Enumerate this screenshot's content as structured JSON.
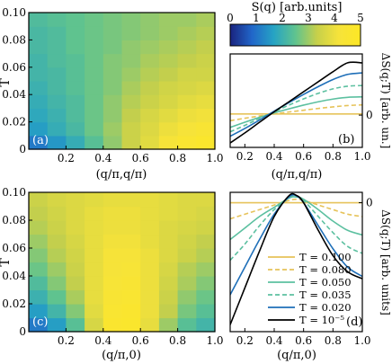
{
  "colorbar": {
    "label": "S(q) [arb.units]",
    "ticks": [
      0,
      1,
      2,
      3,
      4,
      5
    ],
    "range": [
      0,
      5
    ],
    "colormap": [
      "#1a237e",
      "#2166c9",
      "#26a3c4",
      "#5fc38f",
      "#c7d04a",
      "#f6e33a",
      "#fde725"
    ]
  },
  "chart_data": [
    {
      "type": "heatmap",
      "panel_label": "(a)",
      "xlabel": "(q/π,q/π)",
      "ylabel": "T",
      "xlim": [
        0,
        1.0
      ],
      "ylim": [
        0,
        0.1
      ],
      "xticks": [
        "0.2",
        "0.4",
        "0.6",
        "0.8",
        "1.0"
      ],
      "yticks": [
        "0",
        "0.02",
        "0.04",
        "0.06",
        "0.08",
        "0.10"
      ],
      "x": [
        0.05,
        0.15,
        0.25,
        0.35,
        0.45,
        0.55,
        0.65,
        0.75,
        0.85,
        0.95
      ],
      "y": [
        0.005,
        0.015,
        0.025,
        0.035,
        0.045,
        0.055,
        0.065,
        0.075,
        0.085,
        0.095
      ],
      "z": [
        [
          1.1,
          1.5,
          1.9,
          2.4,
          2.9,
          3.4,
          3.8,
          4.2,
          4.5,
          4.7
        ],
        [
          1.6,
          1.9,
          2.2,
          2.6,
          3.0,
          3.4,
          3.7,
          4.0,
          4.2,
          4.4
        ],
        [
          1.8,
          2.0,
          2.3,
          2.6,
          2.9,
          3.3,
          3.6,
          3.8,
          4.0,
          4.1
        ],
        [
          1.9,
          2.1,
          2.3,
          2.6,
          2.9,
          3.2,
          3.4,
          3.6,
          3.8,
          3.9
        ],
        [
          2.0,
          2.2,
          2.4,
          2.6,
          2.8,
          3.1,
          3.3,
          3.5,
          3.6,
          3.7
        ],
        [
          2.1,
          2.2,
          2.4,
          2.6,
          2.8,
          3.0,
          3.2,
          3.3,
          3.5,
          3.5
        ],
        [
          2.1,
          2.3,
          2.4,
          2.6,
          2.8,
          2.9,
          3.1,
          3.2,
          3.3,
          3.4
        ],
        [
          2.2,
          2.3,
          2.5,
          2.6,
          2.7,
          2.9,
          3.0,
          3.1,
          3.2,
          3.3
        ],
        [
          2.2,
          2.3,
          2.5,
          2.6,
          2.7,
          2.8,
          2.9,
          3.0,
          3.1,
          3.2
        ],
        [
          2.3,
          2.4,
          2.5,
          2.6,
          2.7,
          2.8,
          2.9,
          3.0,
          3.0,
          3.1
        ]
      ]
    },
    {
      "type": "line",
      "panel_label": "(b)",
      "xlabel": "(q/π,q/π)",
      "ylabel": "ΔS(q;T) [arb. un.]",
      "xlim": [
        0.1,
        1.0
      ],
      "ylim": [
        -1.45,
        2.75
      ],
      "xticks": [
        "0.2",
        "0.4",
        "0.6",
        "0.8",
        "1.0"
      ],
      "yticks": [
        "0"
      ],
      "x": [
        0.1,
        0.2,
        0.3,
        0.4,
        0.5,
        0.6,
        0.7,
        0.8,
        0.9,
        1.0
      ],
      "series": [
        {
          "name": "T = 0.100",
          "color": "#e6c35a",
          "dash": "solid",
          "values": [
            0.05,
            0.05,
            0.05,
            0.05,
            0.05,
            0.05,
            0.05,
            0.05,
            0.05,
            0.05
          ]
        },
        {
          "name": "T = 0.080",
          "color": "#e6c35a",
          "dash": "dashed",
          "values": [
            -0.25,
            -0.14,
            -0.04,
            0.05,
            0.14,
            0.22,
            0.3,
            0.37,
            0.43,
            0.46
          ]
        },
        {
          "name": "T = 0.050",
          "color": "#5cc0a0",
          "dash": "solid",
          "values": [
            -0.55,
            -0.32,
            -0.1,
            0.1,
            0.28,
            0.45,
            0.6,
            0.72,
            0.8,
            0.82
          ]
        },
        {
          "name": "T = 0.035",
          "color": "#5cc0a0",
          "dash": "dashed",
          "values": [
            -0.75,
            -0.46,
            -0.15,
            0.15,
            0.45,
            0.73,
            0.98,
            1.18,
            1.3,
            1.33
          ]
        },
        {
          "name": "T = 0.020",
          "color": "#1f6fb8",
          "dash": "solid",
          "values": [
            -0.95,
            -0.6,
            -0.22,
            0.18,
            0.56,
            0.93,
            1.28,
            1.6,
            1.83,
            1.9
          ]
        },
        {
          "name": "T = 10⁻⁵",
          "color": "#000000",
          "dash": "solid",
          "values": [
            -1.25,
            -0.8,
            -0.32,
            0.15,
            0.6,
            1.05,
            1.5,
            1.95,
            2.35,
            2.35
          ]
        }
      ]
    },
    {
      "type": "heatmap",
      "panel_label": "(c)",
      "xlabel": "(q/π,0)",
      "ylabel": "T",
      "xlim": [
        0,
        1.0
      ],
      "ylim": [
        0,
        0.1
      ],
      "xticks": [
        "0.2",
        "0.4",
        "0.6",
        "0.8",
        "1.0"
      ],
      "yticks": [
        "0",
        "0.02",
        "0.04",
        "0.06",
        "0.08",
        "0.10"
      ],
      "x": [
        0.05,
        0.15,
        0.25,
        0.35,
        0.45,
        0.55,
        0.65,
        0.75,
        0.85,
        0.95
      ],
      "y": [
        0.005,
        0.015,
        0.025,
        0.035,
        0.045,
        0.055,
        0.065,
        0.075,
        0.085,
        0.095
      ],
      "z": [
        [
          1.1,
          1.6,
          2.4,
          3.6,
          4.6,
          4.7,
          3.9,
          3.0,
          2.4,
          2.1
        ],
        [
          1.6,
          2.1,
          2.8,
          3.8,
          4.5,
          4.6,
          4.0,
          3.3,
          2.7,
          2.4
        ],
        [
          2.0,
          2.5,
          3.1,
          3.9,
          4.4,
          4.5,
          4.0,
          3.4,
          2.9,
          2.6
        ],
        [
          2.3,
          2.8,
          3.3,
          3.9,
          4.3,
          4.4,
          4.0,
          3.5,
          3.1,
          2.8
        ],
        [
          2.6,
          3.0,
          3.4,
          3.9,
          4.2,
          4.3,
          4.0,
          3.6,
          3.2,
          3.0
        ],
        [
          2.8,
          3.2,
          3.5,
          3.9,
          4.2,
          4.2,
          4.0,
          3.7,
          3.4,
          3.2
        ],
        [
          3.0,
          3.3,
          3.6,
          3.9,
          4.1,
          4.1,
          3.9,
          3.7,
          3.5,
          3.3
        ],
        [
          3.2,
          3.4,
          3.7,
          3.9,
          4.0,
          4.0,
          3.9,
          3.7,
          3.6,
          3.5
        ],
        [
          3.3,
          3.5,
          3.7,
          3.9,
          4.0,
          4.0,
          3.9,
          3.8,
          3.7,
          3.6
        ],
        [
          3.4,
          3.6,
          3.7,
          3.8,
          3.9,
          3.9,
          3.9,
          3.8,
          3.7,
          3.7
        ]
      ]
    },
    {
      "type": "line",
      "panel_label": "(d)",
      "xlabel": "(q/π,0)",
      "ylabel": "ΔS(q;T) [arb. units]",
      "xlim": [
        0.1,
        1.0
      ],
      "ylim": [
        -5.6,
        0.45
      ],
      "xticks": [
        "0.2",
        "0.4",
        "0.6",
        "0.8",
        "1.0"
      ],
      "yticks": [
        "0"
      ],
      "x": [
        0.1,
        0.2,
        0.3,
        0.4,
        0.5,
        0.55,
        0.6,
        0.7,
        0.8,
        0.9,
        1.0
      ],
      "series": [
        {
          "name": "T = 0.100",
          "color": "#e6c35a",
          "dash": "solid",
          "values": [
            0.0,
            0.0,
            0.0,
            0.0,
            0.0,
            0.0,
            0.0,
            0.0,
            0.0,
            0.0,
            0.0
          ]
        },
        {
          "name": "T = 0.080",
          "color": "#e6c35a",
          "dash": "dashed",
          "values": [
            -0.7,
            -0.5,
            -0.3,
            -0.1,
            0.1,
            0.15,
            0.1,
            -0.1,
            -0.3,
            -0.5,
            -0.6
          ]
        },
        {
          "name": "T = 0.050",
          "color": "#5cc0a0",
          "dash": "solid",
          "values": [
            -1.6,
            -1.1,
            -0.6,
            -0.2,
            0.2,
            0.25,
            0.15,
            -0.3,
            -0.8,
            -1.2,
            -1.4
          ]
        },
        {
          "name": "T = 0.035",
          "color": "#5cc0a0",
          "dash": "dashed",
          "values": [
            -2.5,
            -1.8,
            -1.0,
            -0.3,
            0.2,
            0.27,
            0.1,
            -0.6,
            -1.3,
            -1.9,
            -2.2
          ]
        },
        {
          "name": "T = 0.020",
          "color": "#1f6fb8",
          "dash": "solid",
          "values": [
            -4.0,
            -2.8,
            -1.6,
            -0.5,
            0.25,
            0.3,
            0.0,
            -1.0,
            -2.0,
            -2.8,
            -3.2
          ]
        },
        {
          "name": "T = 10⁻⁵",
          "color": "#000000",
          "dash": "solid",
          "values": [
            -5.3,
            -3.7,
            -2.1,
            -0.6,
            0.3,
            0.32,
            0.0,
            -1.2,
            -2.3,
            -3.0,
            -3.3
          ]
        }
      ]
    }
  ]
}
